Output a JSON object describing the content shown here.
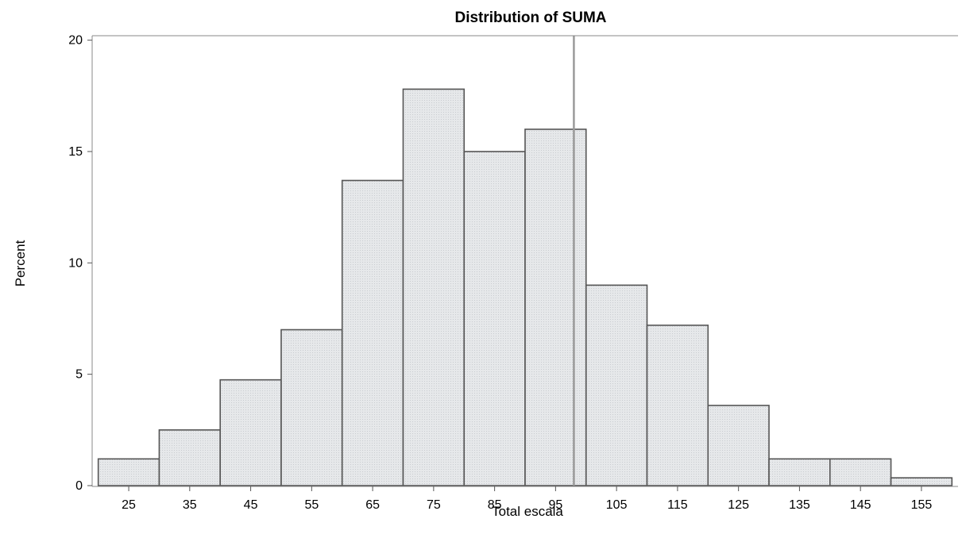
{
  "chart_data": {
    "type": "bar",
    "title": "Distribution of SUMA",
    "xlabel": "Total escala",
    "ylabel": "Percent",
    "bin_width": 10,
    "bins": [
      {
        "center": 25,
        "percent": 1.2
      },
      {
        "center": 35,
        "percent": 2.5
      },
      {
        "center": 45,
        "percent": 4.75
      },
      {
        "center": 55,
        "percent": 7.0
      },
      {
        "center": 65,
        "percent": 13.7
      },
      {
        "center": 75,
        "percent": 17.8
      },
      {
        "center": 85,
        "percent": 15.0
      },
      {
        "center": 95,
        "percent": 16.0
      },
      {
        "center": 105,
        "percent": 9.0
      },
      {
        "center": 115,
        "percent": 7.2
      },
      {
        "center": 125,
        "percent": 3.6
      },
      {
        "center": 135,
        "percent": 1.2
      },
      {
        "center": 145,
        "percent": 1.2
      },
      {
        "center": 155,
        "percent": 0.35
      }
    ],
    "xticks": [
      25,
      35,
      45,
      55,
      65,
      75,
      85,
      95,
      105,
      115,
      125,
      135,
      145,
      155
    ],
    "yticks": [
      0,
      5,
      10,
      15,
      20
    ],
    "xlim": [
      19,
      161
    ],
    "ylim": [
      0,
      20.2
    ],
    "reference_line_x": 98,
    "bar_fill": "#e6e8ea",
    "bar_stroke": "#555555",
    "grid": false
  }
}
